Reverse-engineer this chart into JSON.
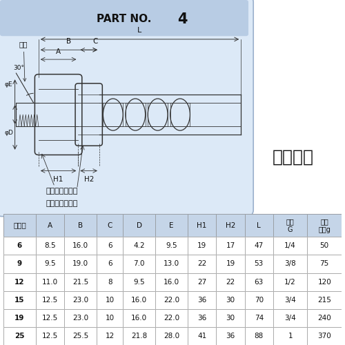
{
  "title": "PART NO.",
  "title_num": "4",
  "kanagu_label": "金具仕様",
  "label_neji": "ねじ",
  "label_angle": "30°",
  "label_phiE": "φE",
  "label_phiD": "φD",
  "label_A": "A",
  "label_B": "B",
  "label_C": "C",
  "label_L": "L",
  "label_H1": "H1",
  "label_H2": "H2",
  "label_kanyo1": "管用平行めねじ",
  "label_kanyo2": "（めすシート）",
  "table_headers": [
    "サイズ",
    "A",
    "B",
    "C",
    "D",
    "E",
    "H1",
    "H2",
    "L",
    "ねじ\nG",
    "概略\n重量g"
  ],
  "table_data": [
    [
      "6",
      "8.5",
      "16.0",
      "6",
      "4.2",
      "9.5",
      "19",
      "17",
      "47",
      "1/4",
      "50"
    ],
    [
      "9",
      "9.5",
      "19.0",
      "6",
      "7.0",
      "13.0",
      "22",
      "19",
      "53",
      "3/8",
      "75"
    ],
    [
      "12",
      "11.0",
      "21.5",
      "8",
      "9.5",
      "16.0",
      "27",
      "22",
      "63",
      "1/2",
      "120"
    ],
    [
      "15",
      "12.5",
      "23.0",
      "10",
      "16.0",
      "22.0",
      "36",
      "30",
      "70",
      "3/4",
      "215"
    ],
    [
      "19",
      "12.5",
      "23.0",
      "10",
      "16.0",
      "22.0",
      "36",
      "30",
      "74",
      "3/4",
      "240"
    ],
    [
      "25",
      "12.5",
      "25.5",
      "12",
      "21.8",
      "28.0",
      "41",
      "36",
      "88",
      "1",
      "370"
    ]
  ],
  "bg_diag_top": "#b8cce4",
  "bg_diag_body": "#dce9f7",
  "bg_header": "#c5d5e8",
  "bg_white": "#ffffff",
  "line_color": "#333333",
  "text_color": "#111111",
  "fig_bg": "#ffffff",
  "border_color": "#888888"
}
